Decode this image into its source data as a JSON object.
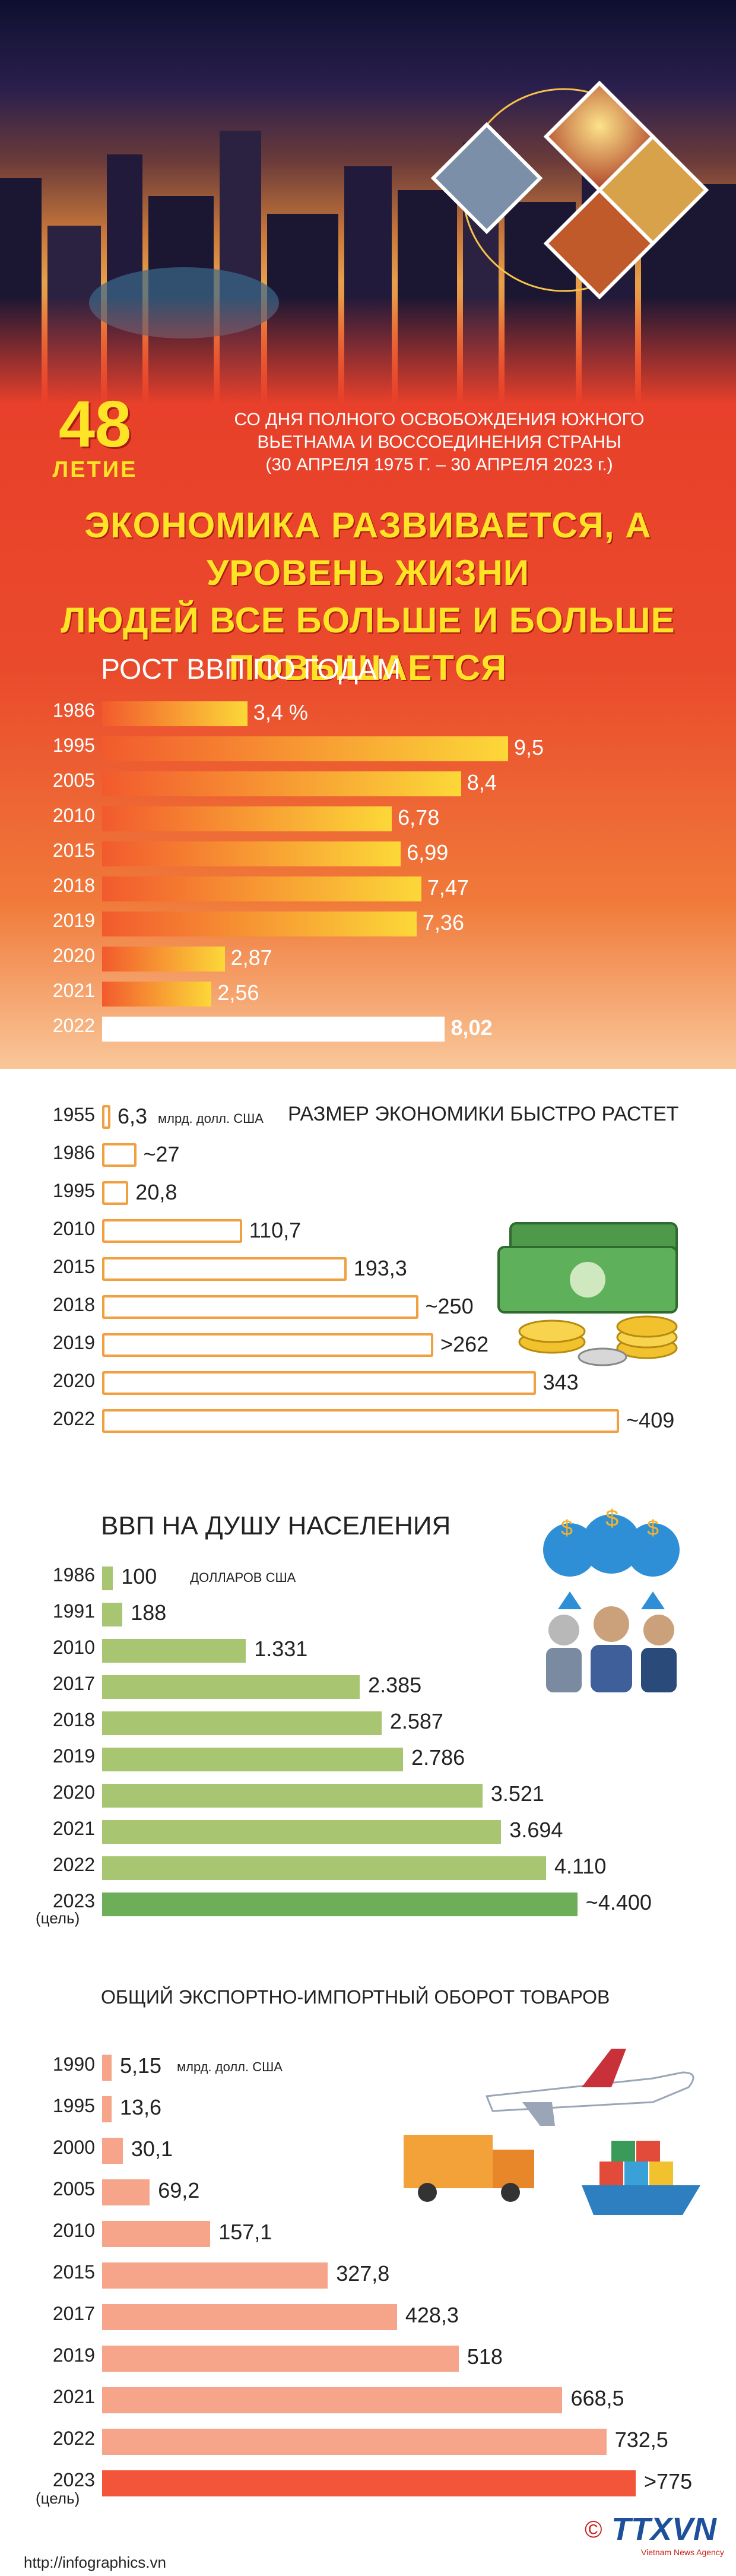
{
  "header": {
    "anniversary_number": "48",
    "anniversary_word": "ЛЕТИЕ",
    "subtitle_line1": "СО ДНЯ ПОЛНОГО ОСВОБОЖДЕНИЯ ЮЖНОГО",
    "subtitle_line2": "ВЬЕТНАМА И ВОССОЕДИНЕНИЯ СТРАНЫ",
    "subtitle_line3": "(30 АПРЕЛЯ 1975 Г. – 30 АПРЕЛЯ 2023 г.)",
    "headline_line1": "ЭКОНОМИКА РАЗВИВАЕТСЯ, А УРОВЕНЬ ЖИЗНИ",
    "headline_line2": "ЛЮДЕЙ ВСЕ БОЛЬШЕ И БОЛЬШЕ ПОВЫШАЕТСЯ"
  },
  "chart_data": [
    {
      "type": "bar",
      "title": "РОСТ ВВП ПО ГОДАМ",
      "categories": [
        "1986",
        "1995",
        "2005",
        "2010",
        "2015",
        "2018",
        "2019",
        "2020",
        "2021",
        "2022"
      ],
      "values": [
        3.4,
        9.5,
        8.4,
        6.78,
        6.99,
        7.47,
        7.36,
        2.87,
        2.56,
        8.02
      ],
      "labels": [
        "3,4 %",
        "9,5",
        "8,4",
        "6,78",
        "6,99",
        "7,47",
        "7,36",
        "2,87",
        "2,56",
        "8,02"
      ],
      "colors": {
        "bar_start": "#f25a2e",
        "bar_end": "#fcd838",
        "highlight": "#ffffff"
      }
    },
    {
      "type": "bar",
      "title": "РАЗМЕР ЭКОНОМИКИ БЫСТРО РАСТЕТ",
      "unit_note": "млрд. долл. США",
      "categories": [
        "1955",
        "1986",
        "1995",
        "2010",
        "2015",
        "2018",
        "2019",
        "2020",
        "2022"
      ],
      "values": [
        6.3,
        27,
        20.8,
        110.7,
        193.3,
        250,
        262,
        343,
        409
      ],
      "labels": [
        "6,3",
        "~27",
        "20,8",
        "110,7",
        "193,3",
        "~250",
        ">262",
        "343",
        "~409"
      ],
      "colors": {
        "bar_fill": "#ffffff",
        "bar_border": "#f0a040"
      }
    },
    {
      "type": "bar",
      "title": "ВВП НА ДУШУ НАСЕЛЕНИЯ",
      "unit_note": "ДОЛЛАРОВ США",
      "target_note": "(цель)",
      "categories": [
        "1986",
        "1991",
        "2010",
        "2017",
        "2018",
        "2019",
        "2020",
        "2021",
        "2022",
        "2023"
      ],
      "values": [
        100,
        188,
        1331,
        2385,
        2587,
        2786,
        3521,
        3694,
        4110,
        4400
      ],
      "labels": [
        "100",
        "188",
        "1.331",
        "2.385",
        "2.587",
        "2.786",
        "3.521",
        "3.694",
        "4.110",
        "~4.400"
      ],
      "colors": {
        "bar": "#a8c572",
        "target": "#6fae58"
      }
    },
    {
      "type": "bar",
      "title": "ОБЩИЙ ЭКСПОРТНО-ИМПОРТНЫЙ ОБОРОТ ТОВАРОВ",
      "unit_note": "млрд. долл. США",
      "target_note": "(цель)",
      "categories": [
        "1990",
        "1995",
        "2000",
        "2005",
        "2010",
        "2015",
        "2017",
        "2019",
        "2021",
        "2022",
        "2023"
      ],
      "values": [
        5.15,
        13.6,
        30.1,
        69.2,
        157.1,
        327.8,
        428.3,
        518,
        668.5,
        732.5,
        775
      ],
      "labels": [
        "5,15",
        "13,6",
        "30,1",
        "69,2",
        "157,1",
        "327,8",
        "428,3",
        "518",
        "668,5",
        "732,5",
        ">775"
      ],
      "colors": {
        "bar": "#f6a58a",
        "target": "#f2553a"
      }
    }
  ],
  "footer": {
    "url": "http://infographics.vn",
    "copyright": "©",
    "logo_text": "TTXVN",
    "logo_sub": "Vietnam News Agency"
  }
}
